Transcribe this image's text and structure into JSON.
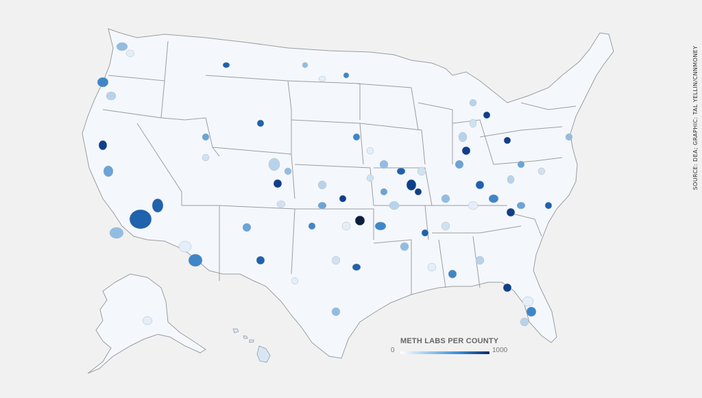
{
  "legend": {
    "title": "METH LABS PER COUNTY",
    "min_label": "0",
    "max_label": "1000",
    "scale_min": 0,
    "scale_max": 1000,
    "color_low": "#ffffff",
    "color_mid": "#3a8fd6",
    "color_high": "#0b2a66"
  },
  "source_note": "SOURCE: DEA; GRAPHIC: TAL YELLIN/CNNMONEY",
  "colors": {
    "background": "#f1f1f1",
    "land_base": "#f4f8fc",
    "border": "#b9bcc2",
    "state_border": "#9a9ca0"
  }
}
